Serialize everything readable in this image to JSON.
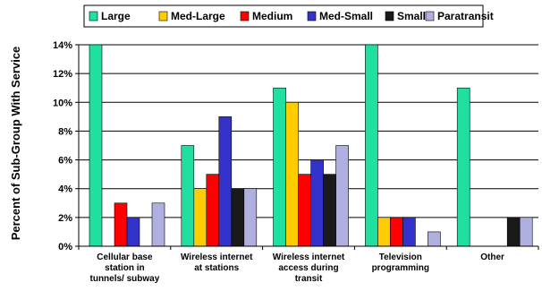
{
  "chart_data": {
    "type": "bar",
    "ylabel": "Percent of Sub-Group With Service",
    "ylim": [
      0,
      14
    ],
    "yticks": [
      "0%",
      "2%",
      "4%",
      "6%",
      "8%",
      "10%",
      "12%",
      "14%"
    ],
    "ytick_values": [
      0,
      2,
      4,
      6,
      8,
      10,
      12,
      14
    ],
    "grid": true,
    "legend_position": "top",
    "categories": [
      [
        "Cellular base",
        "station in",
        "tunnels/ subway"
      ],
      [
        "Wireless internet",
        "at stations"
      ],
      [
        "Wireless internet",
        "access during",
        "transit"
      ],
      [
        "Television",
        "programming"
      ],
      [
        "Other"
      ]
    ],
    "series": [
      {
        "name": "Large",
        "color": "#1FE0A0",
        "values": [
          14,
          7,
          11,
          14,
          11
        ]
      },
      {
        "name": "Med-Large",
        "color": "#FFCC00",
        "values": [
          0,
          4,
          10,
          2,
          0
        ]
      },
      {
        "name": "Medium",
        "color": "#FF0000",
        "values": [
          3,
          5,
          5,
          2,
          0
        ]
      },
      {
        "name": "Med-Small",
        "color": "#3333CC",
        "values": [
          2,
          9,
          6,
          2,
          0
        ]
      },
      {
        "name": "Small",
        "color": "#1A1A1A",
        "values": [
          0,
          4,
          5,
          0,
          2
        ]
      },
      {
        "name": "Paratransit",
        "color": "#B0B0E0",
        "values": [
          3,
          4,
          7,
          1,
          2
        ]
      }
    ]
  }
}
